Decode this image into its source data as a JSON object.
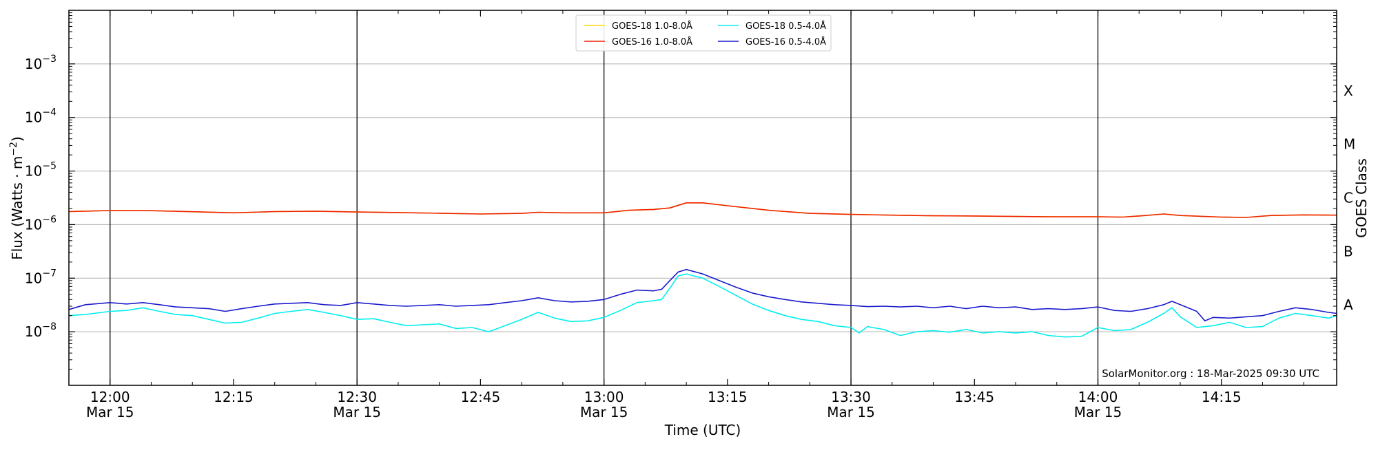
{
  "chart_data": {
    "type": "line",
    "xlabel": "Time (UTC)",
    "ylabel_main": "Flux (Watts · m",
    "ylabel_sup": "−2",
    "ylabel_close": ")",
    "y2label": "GOES Class",
    "credit": "SolarMonitor.org : 18-Mar-2025 09:30 UTC",
    "yscale": "log",
    "ylim": [
      1e-09,
      0.01
    ],
    "xlim": [
      "11:55",
      "14:29"
    ],
    "grid": "horizontal at decades 1e-8 to 1e-3",
    "legend_placement": "top-center",
    "x_ticks": [
      {
        "time": "12:00",
        "label": "12:00",
        "date": "Mar 15",
        "vline": true
      },
      {
        "time": "12:15",
        "label": "12:15",
        "date": "",
        "vline": false
      },
      {
        "time": "12:30",
        "label": "12:30",
        "date": "Mar 15",
        "vline": true
      },
      {
        "time": "12:45",
        "label": "12:45",
        "date": "",
        "vline": false
      },
      {
        "time": "13:00",
        "label": "13:00",
        "date": "Mar 15",
        "vline": true
      },
      {
        "time": "13:15",
        "label": "13:15",
        "date": "",
        "vline": false
      },
      {
        "time": "13:30",
        "label": "13:30",
        "date": "Mar 15",
        "vline": true
      },
      {
        "time": "13:45",
        "label": "13:45",
        "date": "",
        "vline": false
      },
      {
        "time": "14:00",
        "label": "14:00",
        "date": "Mar 15",
        "vline": true
      },
      {
        "time": "14:15",
        "label": "14:15",
        "date": "",
        "vline": false
      }
    ],
    "y_ticks": [
      {
        "value": 1e-08,
        "base": "10",
        "exp": "−8"
      },
      {
        "value": 1e-07,
        "base": "10",
        "exp": "−7"
      },
      {
        "value": 1e-06,
        "base": "10",
        "exp": "−6"
      },
      {
        "value": 1e-05,
        "base": "10",
        "exp": "−5"
      },
      {
        "value": 0.0001,
        "base": "10",
        "exp": "−4"
      },
      {
        "value": 0.001,
        "base": "10",
        "exp": "−3"
      }
    ],
    "goes_classes": [
      {
        "label": "A",
        "lo": 1e-08,
        "hi": 1e-07
      },
      {
        "label": "B",
        "lo": 1e-07,
        "hi": 1e-06
      },
      {
        "label": "C",
        "lo": 1e-06,
        "hi": 1e-05
      },
      {
        "label": "M",
        "lo": 1e-05,
        "hi": 0.0001
      },
      {
        "label": "X",
        "lo": 0.0001,
        "hi": 0.001
      }
    ],
    "series": [
      {
        "name": "GOES-18 1.0-8.0Å",
        "color": "#ffd700",
        "points": [
          [
            "11:55",
            1.75e-06
          ],
          [
            "12:00",
            1.83e-06
          ],
          [
            "12:05",
            1.82e-06
          ],
          [
            "12:10",
            1.74e-06
          ],
          [
            "12:15",
            1.66e-06
          ],
          [
            "12:20",
            1.75e-06
          ],
          [
            "12:25",
            1.78e-06
          ],
          [
            "12:30",
            1.72e-06
          ],
          [
            "12:35",
            1.68e-06
          ],
          [
            "12:40",
            1.63e-06
          ],
          [
            "12:45",
            1.58e-06
          ],
          [
            "12:50",
            1.62e-06
          ],
          [
            "12:52",
            1.7e-06
          ],
          [
            "12:55",
            1.66e-06
          ],
          [
            "13:00",
            1.66e-06
          ],
          [
            "13:03",
            1.85e-06
          ],
          [
            "13:06",
            1.92e-06
          ],
          [
            "13:08",
            2.05e-06
          ],
          [
            "13:10",
            2.55e-06
          ],
          [
            "13:12",
            2.55e-06
          ],
          [
            "13:15",
            2.25e-06
          ],
          [
            "13:20",
            1.85e-06
          ],
          [
            "13:25",
            1.62e-06
          ],
          [
            "13:30",
            1.55e-06
          ],
          [
            "13:35",
            1.5e-06
          ],
          [
            "13:40",
            1.46e-06
          ],
          [
            "13:45",
            1.45e-06
          ],
          [
            "13:50",
            1.42e-06
          ],
          [
            "13:55",
            1.4e-06
          ],
          [
            "14:00",
            1.4e-06
          ],
          [
            "14:03",
            1.38e-06
          ],
          [
            "14:05",
            1.45e-06
          ],
          [
            "14:08",
            1.58e-06
          ],
          [
            "14:10",
            1.48e-06
          ],
          [
            "14:15",
            1.38e-06
          ],
          [
            "14:18",
            1.36e-06
          ],
          [
            "14:21",
            1.48e-06
          ],
          [
            "14:25",
            1.52e-06
          ],
          [
            "14:29",
            1.5e-06
          ]
        ]
      },
      {
        "name": "GOES-16 1.0-8.0Å",
        "color": "#ee2200",
        "points": [
          [
            "11:55",
            1.75e-06
          ],
          [
            "12:00",
            1.83e-06
          ],
          [
            "12:05",
            1.82e-06
          ],
          [
            "12:10",
            1.74e-06
          ],
          [
            "12:15",
            1.66e-06
          ],
          [
            "12:20",
            1.75e-06
          ],
          [
            "12:25",
            1.78e-06
          ],
          [
            "12:30",
            1.72e-06
          ],
          [
            "12:35",
            1.68e-06
          ],
          [
            "12:40",
            1.63e-06
          ],
          [
            "12:45",
            1.58e-06
          ],
          [
            "12:50",
            1.62e-06
          ],
          [
            "12:52",
            1.7e-06
          ],
          [
            "12:55",
            1.66e-06
          ],
          [
            "13:00",
            1.66e-06
          ],
          [
            "13:03",
            1.85e-06
          ],
          [
            "13:06",
            1.92e-06
          ],
          [
            "13:08",
            2.05e-06
          ],
          [
            "13:10",
            2.55e-06
          ],
          [
            "13:12",
            2.55e-06
          ],
          [
            "13:15",
            2.25e-06
          ],
          [
            "13:20",
            1.85e-06
          ],
          [
            "13:25",
            1.62e-06
          ],
          [
            "13:30",
            1.55e-06
          ],
          [
            "13:35",
            1.5e-06
          ],
          [
            "13:40",
            1.46e-06
          ],
          [
            "13:45",
            1.45e-06
          ],
          [
            "13:50",
            1.42e-06
          ],
          [
            "13:55",
            1.4e-06
          ],
          [
            "14:00",
            1.4e-06
          ],
          [
            "14:03",
            1.38e-06
          ],
          [
            "14:05",
            1.45e-06
          ],
          [
            "14:08",
            1.58e-06
          ],
          [
            "14:10",
            1.48e-06
          ],
          [
            "14:15",
            1.38e-06
          ],
          [
            "14:18",
            1.36e-06
          ],
          [
            "14:21",
            1.48e-06
          ],
          [
            "14:25",
            1.52e-06
          ],
          [
            "14:29",
            1.5e-06
          ]
        ]
      },
      {
        "name": "GOES-18 0.5-4.0Å",
        "color": "#00eeee",
        "points": [
          [
            "11:55",
            2e-08
          ],
          [
            "11:57",
            2.1e-08
          ],
          [
            "12:00",
            2.4e-08
          ],
          [
            "12:02",
            2.5e-08
          ],
          [
            "12:04",
            2.8e-08
          ],
          [
            "12:06",
            2.4e-08
          ],
          [
            "12:08",
            2.1e-08
          ],
          [
            "12:10",
            2e-08
          ],
          [
            "12:12",
            1.7e-08
          ],
          [
            "12:14",
            1.45e-08
          ],
          [
            "12:16",
            1.5e-08
          ],
          [
            "12:18",
            1.8e-08
          ],
          [
            "12:20",
            2.2e-08
          ],
          [
            "12:22",
            2.4e-08
          ],
          [
            "12:24",
            2.6e-08
          ],
          [
            "12:26",
            2.3e-08
          ],
          [
            "12:28",
            2e-08
          ],
          [
            "12:30",
            1.7e-08
          ],
          [
            "12:32",
            1.75e-08
          ],
          [
            "12:34",
            1.5e-08
          ],
          [
            "12:36",
            1.3e-08
          ],
          [
            "12:38",
            1.35e-08
          ],
          [
            "12:40",
            1.4e-08
          ],
          [
            "12:42",
            1.15e-08
          ],
          [
            "12:44",
            1.2e-08
          ],
          [
            "12:46",
            1e-08
          ],
          [
            "12:48",
            1.3e-08
          ],
          [
            "12:50",
            1.7e-08
          ],
          [
            "12:52",
            2.3e-08
          ],
          [
            "12:54",
            1.8e-08
          ],
          [
            "12:56",
            1.55e-08
          ],
          [
            "12:58",
            1.6e-08
          ],
          [
            "13:00",
            1.85e-08
          ],
          [
            "13:02",
            2.5e-08
          ],
          [
            "13:04",
            3.5e-08
          ],
          [
            "13:06",
            3.8e-08
          ],
          [
            "13:07",
            4e-08
          ],
          [
            "13:08",
            6.5e-08
          ],
          [
            "13:09",
            1.1e-07
          ],
          [
            "13:10",
            1.2e-07
          ],
          [
            "13:12",
            1e-07
          ],
          [
            "13:14",
            7e-08
          ],
          [
            "13:16",
            4.8e-08
          ],
          [
            "13:18",
            3.3e-08
          ],
          [
            "13:20",
            2.5e-08
          ],
          [
            "13:22",
            2e-08
          ],
          [
            "13:24",
            1.7e-08
          ],
          [
            "13:26",
            1.55e-08
          ],
          [
            "13:28",
            1.3e-08
          ],
          [
            "13:30",
            1.2e-08
          ],
          [
            "13:31",
            9.5e-09
          ],
          [
            "13:32",
            1.25e-08
          ],
          [
            "13:34",
            1.1e-08
          ],
          [
            "13:36",
            8.5e-09
          ],
          [
            "13:38",
            1e-08
          ],
          [
            "13:40",
            1.05e-08
          ],
          [
            "13:42",
            9.8e-09
          ],
          [
            "13:44",
            1.1e-08
          ],
          [
            "13:46",
            9.5e-09
          ],
          [
            "13:48",
            1e-08
          ],
          [
            "13:50",
            9.5e-09
          ],
          [
            "13:52",
            1e-08
          ],
          [
            "13:54",
            8.5e-09
          ],
          [
            "13:56",
            8e-09
          ],
          [
            "13:58",
            8.2e-09
          ],
          [
            "14:00",
            1.2e-08
          ],
          [
            "14:02",
            1.05e-08
          ],
          [
            "14:04",
            1.1e-08
          ],
          [
            "14:06",
            1.5e-08
          ],
          [
            "14:08",
            2.2e-08
          ],
          [
            "14:09",
            2.8e-08
          ],
          [
            "14:10",
            1.9e-08
          ],
          [
            "14:12",
            1.2e-08
          ],
          [
            "14:14",
            1.3e-08
          ],
          [
            "14:16",
            1.5e-08
          ],
          [
            "14:18",
            1.2e-08
          ],
          [
            "14:20",
            1.25e-08
          ],
          [
            "14:22",
            1.8e-08
          ],
          [
            "14:24",
            2.2e-08
          ],
          [
            "14:26",
            2e-08
          ],
          [
            "14:28",
            1.8e-08
          ],
          [
            "14:29",
            2e-08
          ]
        ]
      },
      {
        "name": "GOES-16 0.5-4.0Å",
        "color": "#1a1acc",
        "points": [
          [
            "11:55",
            2.6e-08
          ],
          [
            "11:57",
            3.2e-08
          ],
          [
            "12:00",
            3.5e-08
          ],
          [
            "12:02",
            3.3e-08
          ],
          [
            "12:04",
            3.5e-08
          ],
          [
            "12:06",
            3.2e-08
          ],
          [
            "12:08",
            2.9e-08
          ],
          [
            "12:10",
            2.8e-08
          ],
          [
            "12:12",
            2.7e-08
          ],
          [
            "12:14",
            2.4e-08
          ],
          [
            "12:16",
            2.7e-08
          ],
          [
            "12:18",
            3e-08
          ],
          [
            "12:20",
            3.3e-08
          ],
          [
            "12:22",
            3.4e-08
          ],
          [
            "12:24",
            3.5e-08
          ],
          [
            "12:26",
            3.2e-08
          ],
          [
            "12:28",
            3.1e-08
          ],
          [
            "12:30",
            3.5e-08
          ],
          [
            "12:32",
            3.3e-08
          ],
          [
            "12:34",
            3.1e-08
          ],
          [
            "12:36",
            3e-08
          ],
          [
            "12:38",
            3.1e-08
          ],
          [
            "12:40",
            3.2e-08
          ],
          [
            "12:42",
            3e-08
          ],
          [
            "12:44",
            3.1e-08
          ],
          [
            "12:46",
            3.2e-08
          ],
          [
            "12:48",
            3.5e-08
          ],
          [
            "12:50",
            3.8e-08
          ],
          [
            "12:52",
            4.3e-08
          ],
          [
            "12:54",
            3.8e-08
          ],
          [
            "12:56",
            3.6e-08
          ],
          [
            "12:58",
            3.7e-08
          ],
          [
            "13:00",
            4e-08
          ],
          [
            "13:02",
            5e-08
          ],
          [
            "13:04",
            6e-08
          ],
          [
            "13:06",
            5.8e-08
          ],
          [
            "13:07",
            6.2e-08
          ],
          [
            "13:08",
            9e-08
          ],
          [
            "13:09",
            1.3e-07
          ],
          [
            "13:10",
            1.45e-07
          ],
          [
            "13:12",
            1.2e-07
          ],
          [
            "13:14",
            9e-08
          ],
          [
            "13:16",
            6.8e-08
          ],
          [
            "13:18",
            5.3e-08
          ],
          [
            "13:20",
            4.5e-08
          ],
          [
            "13:22",
            4e-08
          ],
          [
            "13:24",
            3.6e-08
          ],
          [
            "13:26",
            3.4e-08
          ],
          [
            "13:28",
            3.2e-08
          ],
          [
            "13:30",
            3.1e-08
          ],
          [
            "13:32",
            2.95e-08
          ],
          [
            "13:34",
            3e-08
          ],
          [
            "13:36",
            2.9e-08
          ],
          [
            "13:38",
            3e-08
          ],
          [
            "13:40",
            2.8e-08
          ],
          [
            "13:42",
            3e-08
          ],
          [
            "13:44",
            2.7e-08
          ],
          [
            "13:46",
            3e-08
          ],
          [
            "13:48",
            2.8e-08
          ],
          [
            "13:50",
            2.9e-08
          ],
          [
            "13:52",
            2.6e-08
          ],
          [
            "13:54",
            2.7e-08
          ],
          [
            "13:56",
            2.6e-08
          ],
          [
            "13:58",
            2.7e-08
          ],
          [
            "14:00",
            2.9e-08
          ],
          [
            "14:02",
            2.5e-08
          ],
          [
            "14:04",
            2.4e-08
          ],
          [
            "14:06",
            2.7e-08
          ],
          [
            "14:08",
            3.2e-08
          ],
          [
            "14:09",
            3.7e-08
          ],
          [
            "14:10",
            3.2e-08
          ],
          [
            "14:12",
            2.4e-08
          ],
          [
            "14:13",
            1.6e-08
          ],
          [
            "14:14",
            1.85e-08
          ],
          [
            "14:16",
            1.8e-08
          ],
          [
            "14:18",
            1.9e-08
          ],
          [
            "14:20",
            2e-08
          ],
          [
            "14:22",
            2.4e-08
          ],
          [
            "14:24",
            2.8e-08
          ],
          [
            "14:26",
            2.6e-08
          ],
          [
            "14:28",
            2.3e-08
          ],
          [
            "14:29",
            2.2e-08
          ]
        ]
      }
    ]
  }
}
